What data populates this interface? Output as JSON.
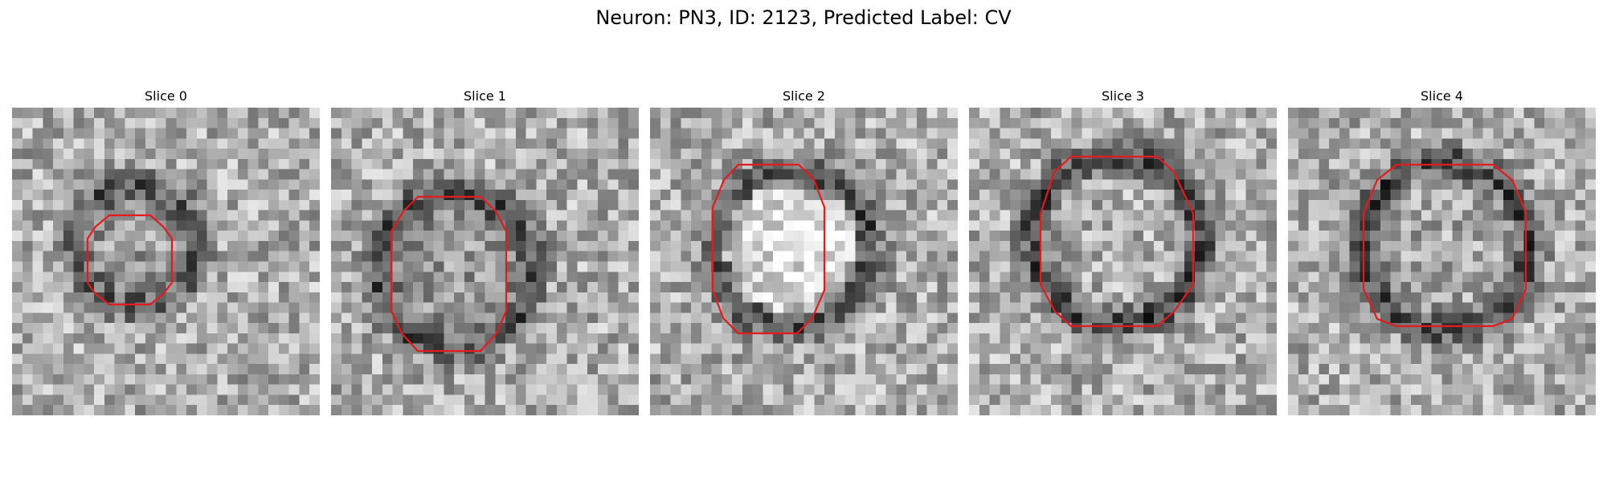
{
  "figure": {
    "title": "Neuron: PN3, ID: 2123, Predicted Label: CV"
  },
  "panels": [
    {
      "title": "Slice 0",
      "seed": 11,
      "center_brightness": 0.62,
      "ring_darkness": 0.35
    },
    {
      "title": "Slice 1",
      "seed": 23,
      "center_brightness": 0.6,
      "ring_darkness": 0.38
    },
    {
      "title": "Slice 2",
      "seed": 37,
      "center_brightness": 0.88,
      "ring_darkness": 0.4
    },
    {
      "title": "Slice 3",
      "seed": 41,
      "center_brightness": 0.68,
      "ring_darkness": 0.42
    },
    {
      "title": "Slice 4",
      "seed": 53,
      "center_brightness": 0.66,
      "ring_darkness": 0.4
    }
  ],
  "contour_color": "#e41a1c",
  "colormap": "gray"
}
